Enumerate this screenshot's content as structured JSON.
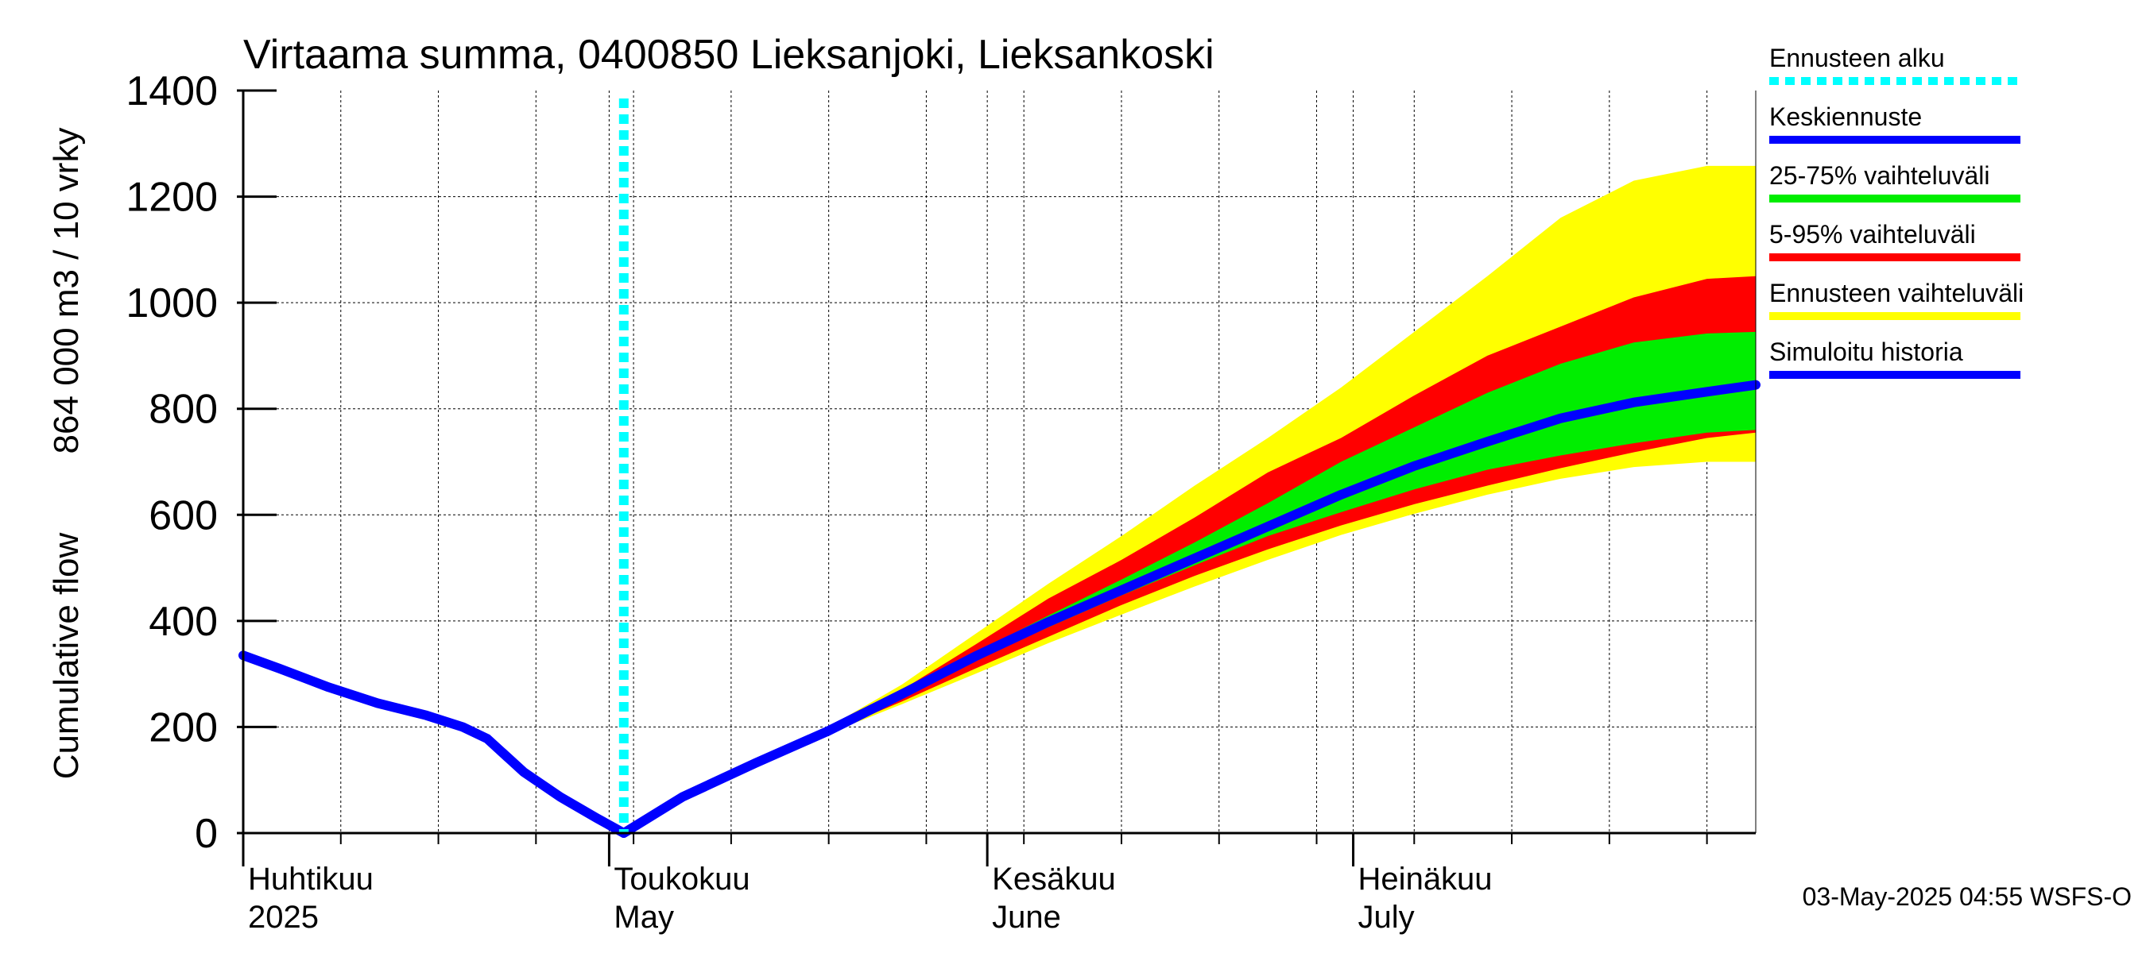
{
  "chart_data": {
    "type": "area",
    "title": "Virtaama summa, 0400850 Lieksanjoki, Lieksankoski",
    "ylabel_line1": "Cumulative flow",
    "ylabel_line2": "864 000 m3 / 10 vrky",
    "ylim": [
      0,
      1400
    ],
    "yticks": [
      0,
      200,
      400,
      600,
      800,
      1000,
      1200,
      1400
    ],
    "x_axis_unit": "days since 1 April 2025",
    "xlim": [
      0,
      124
    ],
    "grid": true,
    "months": [
      {
        "day": 0,
        "fi": "Huhtikuu",
        "en": "2025"
      },
      {
        "day": 30,
        "fi": "Toukokuu",
        "en": "May"
      },
      {
        "day": 61,
        "fi": "Kesäkuu",
        "en": "June"
      },
      {
        "day": 91,
        "fi": "Heinäkuu",
        "en": "July"
      }
    ],
    "forecast_start_day": 31.2,
    "x": [
      0,
      8,
      15,
      21,
      26,
      31.2,
      36,
      42,
      48,
      54,
      60,
      66,
      72,
      78,
      84,
      90,
      96,
      102,
      108,
      114,
      120,
      124
    ],
    "series": [
      {
        "name": "Simuloitu historia",
        "color": "#0000ff",
        "x": [
          0,
          3,
          7,
          11,
          15,
          18,
          20,
          23,
          26,
          29,
          31.2
        ],
        "values": [
          335,
          310,
          275,
          245,
          222,
          200,
          178,
          115,
          68,
          28,
          0
        ]
      },
      {
        "name": "Keskiennuste",
        "color": "#0000ff",
        "values": [
          null,
          null,
          null,
          null,
          null,
          0,
          68,
          132,
          193,
          262,
          333,
          398,
          458,
          518,
          578,
          638,
          692,
          738,
          782,
          812,
          832,
          845
        ]
      },
      {
        "name": "Ennusteen vaihteluväli",
        "color": "#ffff00",
        "low": [
          null,
          null,
          null,
          null,
          null,
          0,
          68,
          132,
          188,
          243,
          300,
          358,
          412,
          465,
          515,
          562,
          602,
          638,
          668,
          690,
          700,
          700
        ],
        "high": [
          null,
          null,
          null,
          null,
          null,
          0,
          68,
          132,
          200,
          280,
          375,
          470,
          560,
          655,
          745,
          840,
          945,
          1050,
          1160,
          1230,
          1258,
          1258
        ]
      },
      {
        "name": "5-95% vaihteluväli",
        "color": "#ff0000",
        "low": [
          null,
          null,
          null,
          null,
          null,
          0,
          68,
          132,
          190,
          248,
          310,
          370,
          430,
          485,
          535,
          580,
          620,
          655,
          688,
          718,
          745,
          755
        ],
        "high": [
          null,
          null,
          null,
          null,
          null,
          0,
          68,
          132,
          198,
          270,
          355,
          442,
          515,
          595,
          680,
          745,
          825,
          900,
          955,
          1010,
          1045,
          1050
        ]
      },
      {
        "name": "25-75% vaihteluväli",
        "color": "#00ee00",
        "low": [
          null,
          null,
          null,
          null,
          null,
          0,
          68,
          132,
          192,
          256,
          325,
          388,
          448,
          505,
          560,
          605,
          648,
          685,
          712,
          735,
          755,
          760
        ],
        "high": [
          null,
          null,
          null,
          null,
          null,
          0,
          68,
          132,
          195,
          265,
          340,
          410,
          478,
          548,
          622,
          700,
          765,
          830,
          885,
          925,
          942,
          945
        ]
      }
    ],
    "legend": [
      {
        "label": "Ennusteen alku",
        "color": "#00ffff",
        "style": "dotted"
      },
      {
        "label": "Keskiennuste",
        "color": "#0000ff",
        "style": "solid"
      },
      {
        "label": "25-75% vaihteluväli",
        "color": "#00ee00",
        "style": "solid"
      },
      {
        "label": "5-95% vaihteluväli",
        "color": "#ff0000",
        "style": "solid"
      },
      {
        "label": "Ennusteen vaihteluväli",
        "color": "#ffff00",
        "style": "solid"
      },
      {
        "label": "Simuloitu historia",
        "color": "#0000ff",
        "style": "solid"
      }
    ],
    "legend_position": "right",
    "footer": "03-May-2025 04:55 WSFS-O"
  }
}
